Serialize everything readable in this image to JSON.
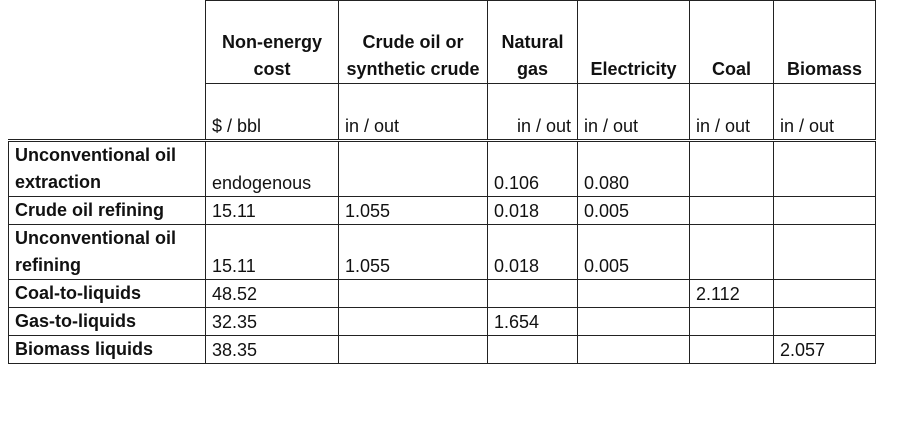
{
  "columns": [
    {
      "header": "Non-energy cost",
      "unit": "$ / bbl"
    },
    {
      "header": "Crude oil or synthetic crude",
      "unit": "in / out"
    },
    {
      "header": "Natural gas",
      "unit": "in / out"
    },
    {
      "header": "Electricity",
      "unit": "in / out"
    },
    {
      "header": "Coal",
      "unit": "in / out"
    },
    {
      "header": "Biomass",
      "unit": "in / out"
    }
  ],
  "rows": [
    {
      "label": "Unconventional oil extraction",
      "cells": [
        "endogenous",
        "",
        "0.106",
        "0.080",
        "",
        ""
      ]
    },
    {
      "label": "Crude oil refining",
      "cells": [
        "15.11",
        "1.055",
        "0.018",
        "0.005",
        "",
        ""
      ]
    },
    {
      "label": "Unconventional oil refining",
      "cells": [
        "15.11",
        "1.055",
        "0.018",
        "0.005",
        "",
        ""
      ]
    },
    {
      "label": "Coal-to-liquids",
      "cells": [
        "48.52",
        "",
        "",
        "",
        "2.112",
        ""
      ]
    },
    {
      "label": "Gas-to-liquids",
      "cells": [
        "32.35",
        "",
        "1.654",
        "",
        "",
        ""
      ]
    },
    {
      "label": "Biomass liquids",
      "cells": [
        "38.35",
        "",
        "",
        "",
        "",
        "2.057"
      ]
    }
  ]
}
